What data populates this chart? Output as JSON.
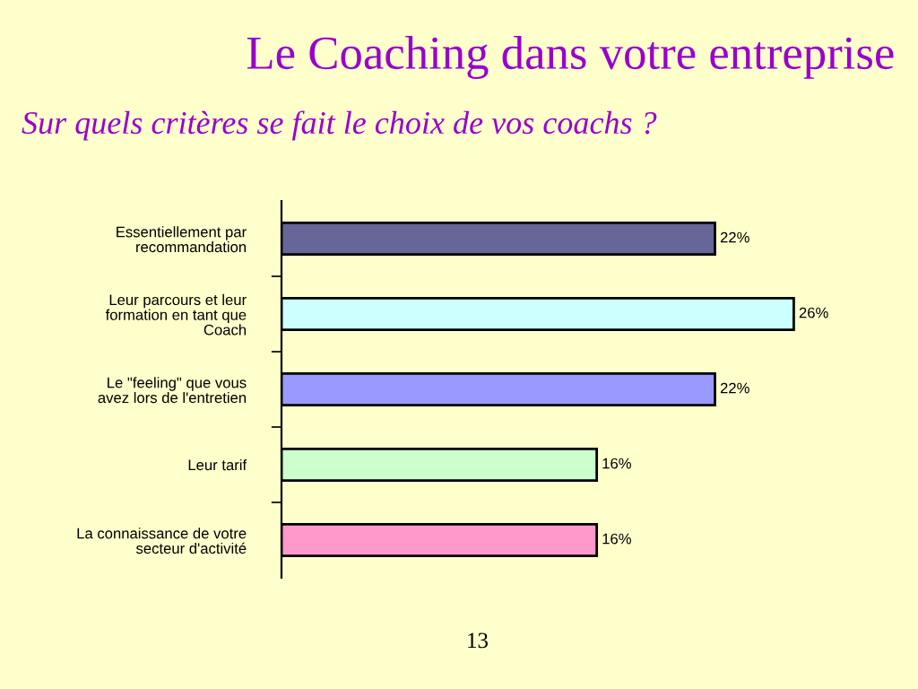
{
  "chart_data": {
    "type": "bar",
    "orientation": "horizontal",
    "title": "Le Coaching dans votre entreprise",
    "subtitle": "Sur quels critères se fait le choix de vos coachs ?",
    "categories": [
      "Essentiellement par recommandation",
      "Leur parcours et leur formation en tant que Coach",
      "Le \"feeling\" que vous avez lors de l'entretien",
      "Leur tarif",
      "La connaissance de votre secteur d'activité"
    ],
    "values": [
      22,
      26,
      22,
      16,
      16
    ],
    "value_labels": [
      "22%",
      "26%",
      "22%",
      "16%",
      "16%"
    ],
    "colors": [
      "#666699",
      "#ccffff",
      "#9999ff",
      "#ccffcc",
      "#ff99cc"
    ],
    "grid": false,
    "legend": false,
    "annotations": [
      "13"
    ]
  }
}
